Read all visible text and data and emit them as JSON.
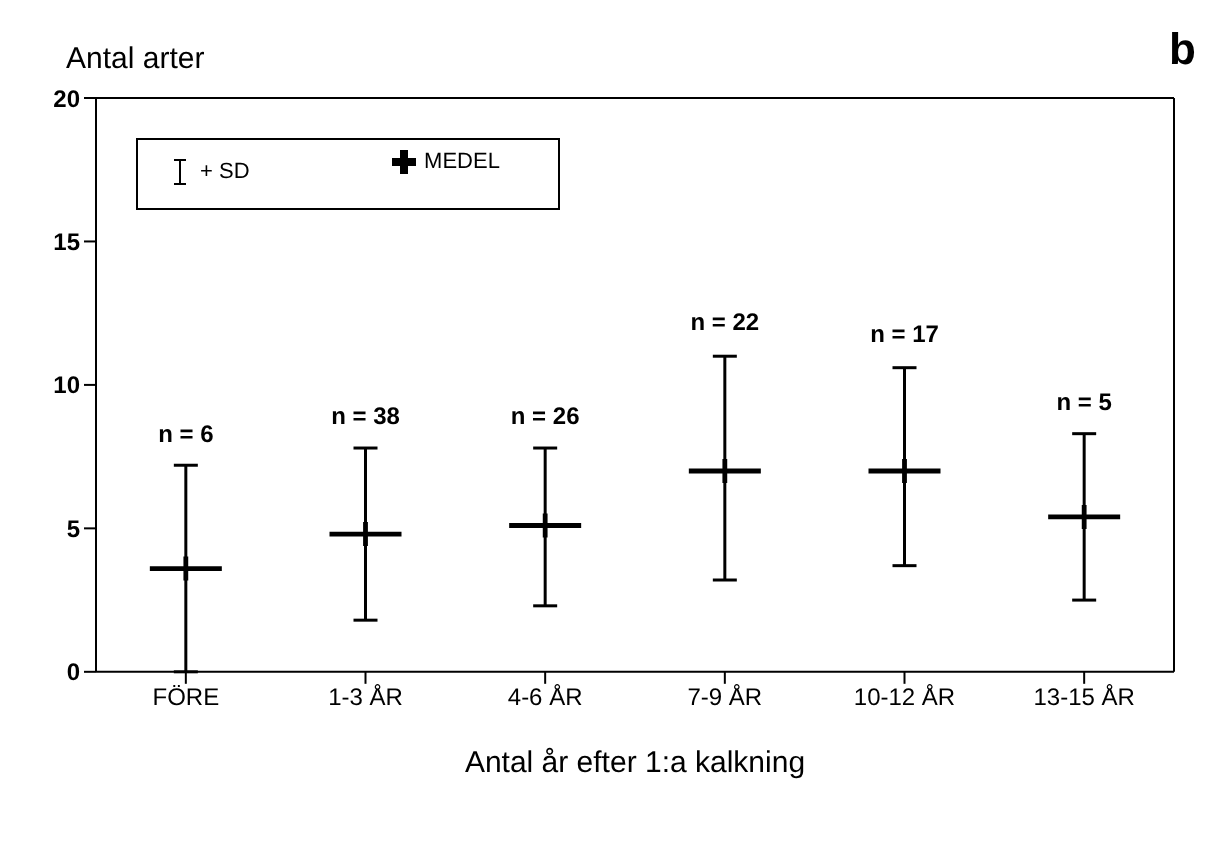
{
  "chart_data": {
    "type": "scatter",
    "ylabel": "Antal arter",
    "xlabel": "Antal år efter 1:a kalkning",
    "categories": [
      "FÖRE",
      "1-3 ÅR",
      "4-6 ÅR",
      "7-9 ÅR",
      "10-12 ÅR",
      "13-15 ÅR"
    ],
    "series": [
      {
        "name": "MEDEL",
        "color": "#000000",
        "values": [
          3.6,
          4.8,
          5.1,
          7.0,
          7.0,
          5.4
        ],
        "errors": [
          [
            0,
            7.2
          ],
          [
            1.8,
            7.8
          ],
          [
            2.3,
            7.8
          ],
          [
            3.2,
            11.0
          ],
          [
            3.7,
            10.6
          ],
          [
            2.5,
            8.3
          ]
        ]
      }
    ],
    "ylim": [
      0,
      20
    ],
    "yticks": [
      0,
      5,
      10,
      15,
      20
    ],
    "legend": "top left",
    "marker": "cross",
    "annotations": [
      "+ SD",
      "b",
      {
        "text": "n = 6",
        "x": "FÖRE",
        "y": 7.2
      },
      {
        "text": "n = 38",
        "x": "1-3 ÅR",
        "y": 7.8
      },
      {
        "text": "n = 26",
        "x": "4-6 ÅR",
        "y": 7.8
      },
      {
        "text": "n = 22",
        "x": "7-9 ÅR",
        "y": 11.0
      },
      {
        "text": "n = 17",
        "x": "10-12 ÅR",
        "y": 10.6
      },
      {
        "text": "n = 5",
        "x": "13-15 ÅR",
        "y": 8.3
      }
    ]
  }
}
